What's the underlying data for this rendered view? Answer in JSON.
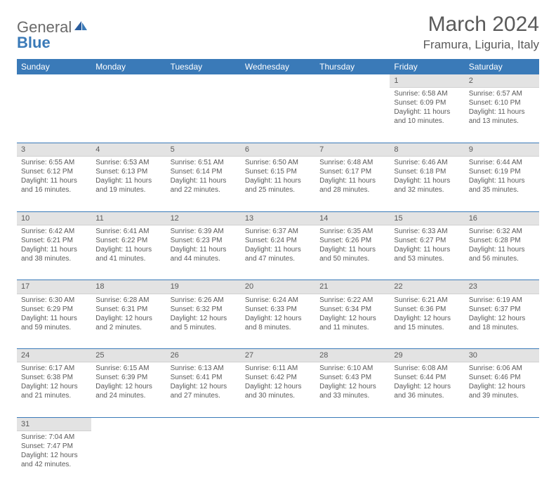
{
  "logo": {
    "general": "General",
    "blue": "Blue"
  },
  "title": "March 2024",
  "location": "Framura, Liguria, Italy",
  "colors": {
    "header_bg": "#3a7ab8",
    "header_text": "#ffffff",
    "daynum_bg": "#e3e3e3",
    "text": "#5a5a5a",
    "week_sep": "#3a7ab8",
    "background": "#ffffff"
  },
  "day_headers": [
    "Sunday",
    "Monday",
    "Tuesday",
    "Wednesday",
    "Thursday",
    "Friday",
    "Saturday"
  ],
  "weeks": [
    [
      null,
      null,
      null,
      null,
      null,
      {
        "n": "1",
        "sr": "Sunrise: 6:58 AM",
        "ss": "Sunset: 6:09 PM",
        "dl": "Daylight: 11 hours and 10 minutes."
      },
      {
        "n": "2",
        "sr": "Sunrise: 6:57 AM",
        "ss": "Sunset: 6:10 PM",
        "dl": "Daylight: 11 hours and 13 minutes."
      }
    ],
    [
      {
        "n": "3",
        "sr": "Sunrise: 6:55 AM",
        "ss": "Sunset: 6:12 PM",
        "dl": "Daylight: 11 hours and 16 minutes."
      },
      {
        "n": "4",
        "sr": "Sunrise: 6:53 AM",
        "ss": "Sunset: 6:13 PM",
        "dl": "Daylight: 11 hours and 19 minutes."
      },
      {
        "n": "5",
        "sr": "Sunrise: 6:51 AM",
        "ss": "Sunset: 6:14 PM",
        "dl": "Daylight: 11 hours and 22 minutes."
      },
      {
        "n": "6",
        "sr": "Sunrise: 6:50 AM",
        "ss": "Sunset: 6:15 PM",
        "dl": "Daylight: 11 hours and 25 minutes."
      },
      {
        "n": "7",
        "sr": "Sunrise: 6:48 AM",
        "ss": "Sunset: 6:17 PM",
        "dl": "Daylight: 11 hours and 28 minutes."
      },
      {
        "n": "8",
        "sr": "Sunrise: 6:46 AM",
        "ss": "Sunset: 6:18 PM",
        "dl": "Daylight: 11 hours and 32 minutes."
      },
      {
        "n": "9",
        "sr": "Sunrise: 6:44 AM",
        "ss": "Sunset: 6:19 PM",
        "dl": "Daylight: 11 hours and 35 minutes."
      }
    ],
    [
      {
        "n": "10",
        "sr": "Sunrise: 6:42 AM",
        "ss": "Sunset: 6:21 PM",
        "dl": "Daylight: 11 hours and 38 minutes."
      },
      {
        "n": "11",
        "sr": "Sunrise: 6:41 AM",
        "ss": "Sunset: 6:22 PM",
        "dl": "Daylight: 11 hours and 41 minutes."
      },
      {
        "n": "12",
        "sr": "Sunrise: 6:39 AM",
        "ss": "Sunset: 6:23 PM",
        "dl": "Daylight: 11 hours and 44 minutes."
      },
      {
        "n": "13",
        "sr": "Sunrise: 6:37 AM",
        "ss": "Sunset: 6:24 PM",
        "dl": "Daylight: 11 hours and 47 minutes."
      },
      {
        "n": "14",
        "sr": "Sunrise: 6:35 AM",
        "ss": "Sunset: 6:26 PM",
        "dl": "Daylight: 11 hours and 50 minutes."
      },
      {
        "n": "15",
        "sr": "Sunrise: 6:33 AM",
        "ss": "Sunset: 6:27 PM",
        "dl": "Daylight: 11 hours and 53 minutes."
      },
      {
        "n": "16",
        "sr": "Sunrise: 6:32 AM",
        "ss": "Sunset: 6:28 PM",
        "dl": "Daylight: 11 hours and 56 minutes."
      }
    ],
    [
      {
        "n": "17",
        "sr": "Sunrise: 6:30 AM",
        "ss": "Sunset: 6:29 PM",
        "dl": "Daylight: 11 hours and 59 minutes."
      },
      {
        "n": "18",
        "sr": "Sunrise: 6:28 AM",
        "ss": "Sunset: 6:31 PM",
        "dl": "Daylight: 12 hours and 2 minutes."
      },
      {
        "n": "19",
        "sr": "Sunrise: 6:26 AM",
        "ss": "Sunset: 6:32 PM",
        "dl": "Daylight: 12 hours and 5 minutes."
      },
      {
        "n": "20",
        "sr": "Sunrise: 6:24 AM",
        "ss": "Sunset: 6:33 PM",
        "dl": "Daylight: 12 hours and 8 minutes."
      },
      {
        "n": "21",
        "sr": "Sunrise: 6:22 AM",
        "ss": "Sunset: 6:34 PM",
        "dl": "Daylight: 12 hours and 11 minutes."
      },
      {
        "n": "22",
        "sr": "Sunrise: 6:21 AM",
        "ss": "Sunset: 6:36 PM",
        "dl": "Daylight: 12 hours and 15 minutes."
      },
      {
        "n": "23",
        "sr": "Sunrise: 6:19 AM",
        "ss": "Sunset: 6:37 PM",
        "dl": "Daylight: 12 hours and 18 minutes."
      }
    ],
    [
      {
        "n": "24",
        "sr": "Sunrise: 6:17 AM",
        "ss": "Sunset: 6:38 PM",
        "dl": "Daylight: 12 hours and 21 minutes."
      },
      {
        "n": "25",
        "sr": "Sunrise: 6:15 AM",
        "ss": "Sunset: 6:39 PM",
        "dl": "Daylight: 12 hours and 24 minutes."
      },
      {
        "n": "26",
        "sr": "Sunrise: 6:13 AM",
        "ss": "Sunset: 6:41 PM",
        "dl": "Daylight: 12 hours and 27 minutes."
      },
      {
        "n": "27",
        "sr": "Sunrise: 6:11 AM",
        "ss": "Sunset: 6:42 PM",
        "dl": "Daylight: 12 hours and 30 minutes."
      },
      {
        "n": "28",
        "sr": "Sunrise: 6:10 AM",
        "ss": "Sunset: 6:43 PM",
        "dl": "Daylight: 12 hours and 33 minutes."
      },
      {
        "n": "29",
        "sr": "Sunrise: 6:08 AM",
        "ss": "Sunset: 6:44 PM",
        "dl": "Daylight: 12 hours and 36 minutes."
      },
      {
        "n": "30",
        "sr": "Sunrise: 6:06 AM",
        "ss": "Sunset: 6:46 PM",
        "dl": "Daylight: 12 hours and 39 minutes."
      }
    ],
    [
      {
        "n": "31",
        "sr": "Sunrise: 7:04 AM",
        "ss": "Sunset: 7:47 PM",
        "dl": "Daylight: 12 hours and 42 minutes."
      },
      null,
      null,
      null,
      null,
      null,
      null
    ]
  ]
}
